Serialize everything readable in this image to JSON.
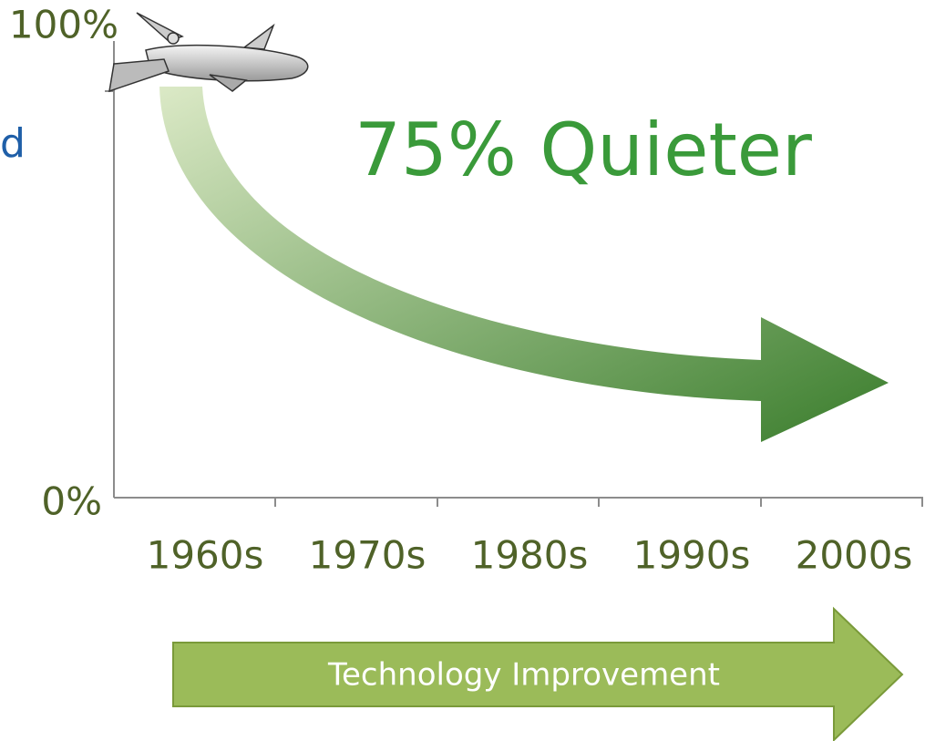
{
  "fragment": "d",
  "axis": {
    "y_labels": [
      "100%",
      "0%"
    ],
    "x_labels": [
      "1960s",
      "1970s",
      "1980s",
      "1990s",
      "2000s"
    ]
  },
  "callout": "75% Quieter",
  "banner": "Technology Improvement"
}
